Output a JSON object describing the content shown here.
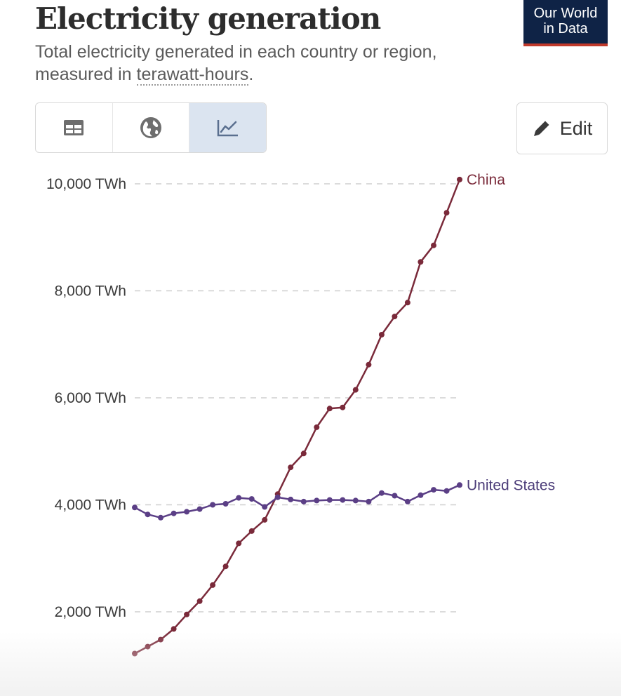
{
  "header": {
    "title": "Electricity generation",
    "subtitle_prefix": "Total electricity generated in each country or region, measured in ",
    "subtitle_link": "terawatt-hours",
    "subtitle_suffix": ".",
    "logo_line1": "Our World",
    "logo_line2": "in Data"
  },
  "toolbar": {
    "tabs": [
      {
        "icon": "table-icon",
        "active": false
      },
      {
        "icon": "globe-icon",
        "active": false
      },
      {
        "icon": "line-chart-icon",
        "active": true
      }
    ],
    "edit_label": "Edit"
  },
  "colors": {
    "china": "#7a2a3a",
    "united_states": "#5b3f86",
    "grid": "#cfcfcf",
    "text": "#3a3a3a"
  },
  "chart_data": {
    "type": "line",
    "title": "Electricity generation",
    "ylim": [
      1000,
      10000
    ],
    "yticks": [
      2000,
      4000,
      6000,
      8000,
      10000
    ],
    "ytick_labels": [
      "2,000 TWh",
      "4,000 TWh",
      "6,000 TWh",
      "8,000 TWh",
      "10,000 TWh"
    ],
    "grid": "horizontal-dashed",
    "x": [
      0,
      1,
      2,
      3,
      4,
      5,
      6,
      7,
      8,
      9,
      10,
      11,
      12,
      13,
      14,
      15,
      16,
      17,
      18,
      19,
      20,
      21,
      22,
      23,
      24,
      25
    ],
    "series": [
      {
        "name": "China",
        "values": [
          1220,
          1350,
          1480,
          1680,
          1950,
          2200,
          2500,
          2850,
          3280,
          3510,
          3720,
          4200,
          4700,
          4960,
          5450,
          5800,
          5820,
          6150,
          6620,
          7180,
          7520,
          7780,
          8540,
          8850,
          9460,
          10080
        ]
      },
      {
        "name": "United States",
        "values": [
          3950,
          3820,
          3760,
          3840,
          3870,
          3920,
          4000,
          4020,
          4130,
          4110,
          3960,
          4140,
          4100,
          4060,
          4080,
          4090,
          4090,
          4080,
          4060,
          4220,
          4170,
          4060,
          4180,
          4280,
          4260,
          4370
        ]
      }
    ]
  }
}
